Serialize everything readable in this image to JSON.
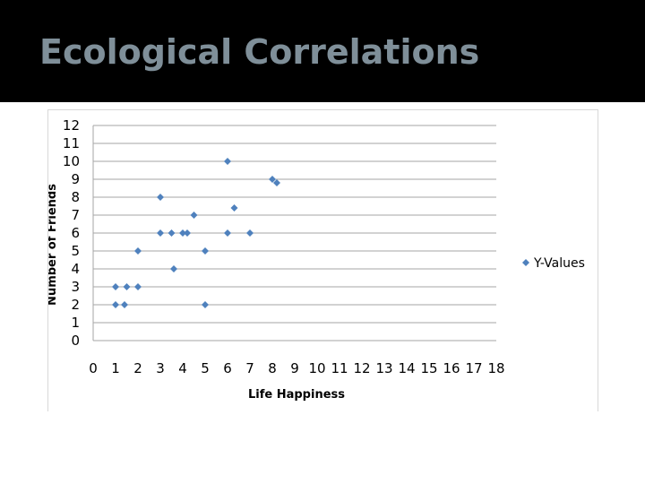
{
  "slide": {
    "title": "Ecological Correlations"
  },
  "colors": {
    "title_bar": "#000000",
    "title_text": "#7f8f99",
    "marker": "#4f81bd",
    "gridline": "#a6a6a6"
  },
  "chart_data": {
    "type": "scatter",
    "title": "",
    "xlabel": "Life Happiness",
    "ylabel": "Number of Friends",
    "xlim": [
      0,
      18
    ],
    "ylim": [
      0,
      12
    ],
    "xticks": [
      "0",
      "1",
      "2",
      "3",
      "4",
      "5",
      "6",
      "7",
      "8",
      "9",
      "10",
      "11",
      "12",
      "13",
      "14",
      "15",
      "16",
      "17",
      "18"
    ],
    "yticks": [
      "0",
      "1",
      "2",
      "3",
      "4",
      "5",
      "6",
      "7",
      "8",
      "9",
      "10",
      "11",
      "12"
    ],
    "grid": "horizontal",
    "legend_position": "right",
    "series": [
      {
        "name": "Y-Values",
        "marker": "diamond",
        "points": [
          {
            "x": 1,
            "y": 2
          },
          {
            "x": 1,
            "y": 3
          },
          {
            "x": 1.4,
            "y": 2
          },
          {
            "x": 1.5,
            "y": 3
          },
          {
            "x": 2,
            "y": 3
          },
          {
            "x": 2,
            "y": 5
          },
          {
            "x": 3,
            "y": 8
          },
          {
            "x": 3,
            "y": 6
          },
          {
            "x": 3.5,
            "y": 6
          },
          {
            "x": 3.6,
            "y": 4
          },
          {
            "x": 4,
            "y": 6
          },
          {
            "x": 4.2,
            "y": 6
          },
          {
            "x": 4.5,
            "y": 7
          },
          {
            "x": 5,
            "y": 5
          },
          {
            "x": 5,
            "y": 2
          },
          {
            "x": 6,
            "y": 10
          },
          {
            "x": 6,
            "y": 6
          },
          {
            "x": 6.3,
            "y": 7.4
          },
          {
            "x": 7,
            "y": 6
          },
          {
            "x": 8,
            "y": 9
          },
          {
            "x": 8.2,
            "y": 8.8
          }
        ]
      }
    ]
  }
}
